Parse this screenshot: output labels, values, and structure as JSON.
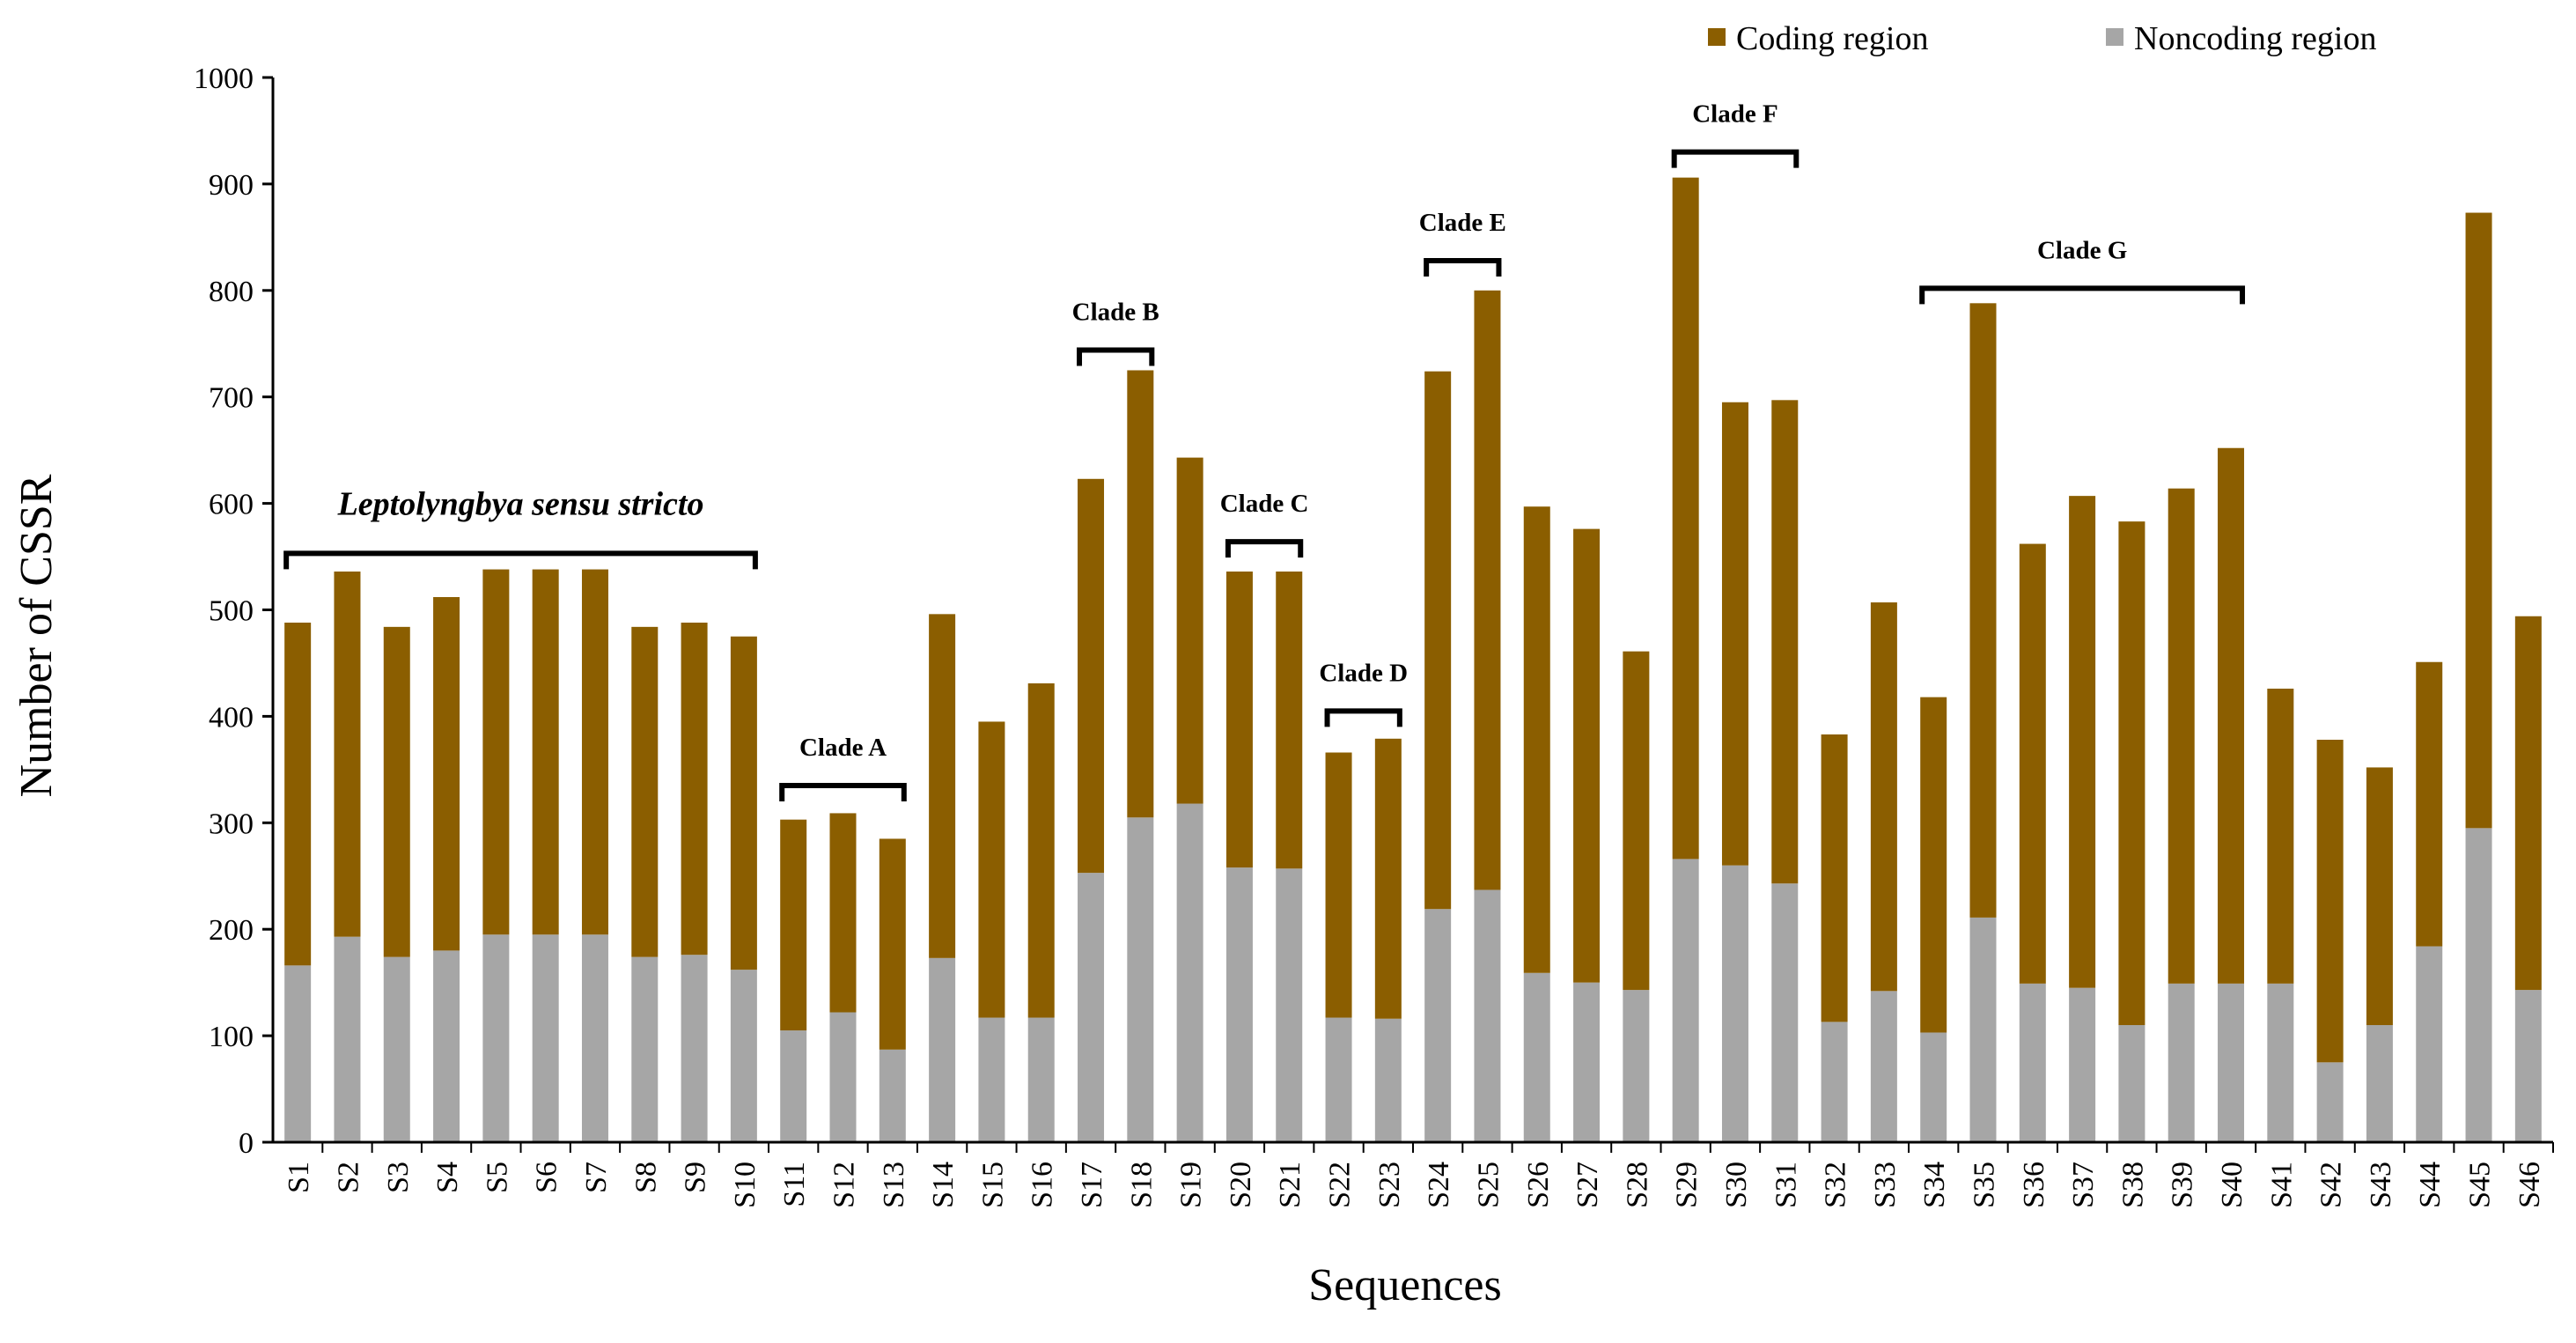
{
  "chart_data": {
    "type": "stacked-bar",
    "xlabel": "Sequences",
    "ylabel": "Number of CSSR",
    "ylim": [
      0,
      1000
    ],
    "yticks": [
      0,
      100,
      200,
      300,
      400,
      500,
      600,
      700,
      800,
      900,
      1000
    ],
    "legend_position": "top-right",
    "categories": [
      "S1",
      "S2",
      "S3",
      "S4",
      "S5",
      "S6",
      "S7",
      "S8",
      "S9",
      "S10",
      "S11",
      "S12",
      "S13",
      "S14",
      "S15",
      "S16",
      "S17",
      "S18",
      "S19",
      "S20",
      "S21",
      "S22",
      "S23",
      "S24",
      "S25",
      "S26",
      "S27",
      "S28",
      "S29",
      "S30",
      "S31",
      "S32",
      "S33",
      "S34",
      "S35",
      "S36",
      "S37",
      "S38",
      "S39",
      "S40",
      "S41",
      "S42",
      "S43",
      "S44",
      "S45",
      "S46"
    ],
    "series": [
      {
        "name": "Noncoding region",
        "color": "#a6a6a6",
        "values": [
          166,
          193,
          174,
          180,
          195,
          195,
          195,
          174,
          176,
          162,
          105,
          122,
          87,
          173,
          117,
          117,
          253,
          305,
          318,
          258,
          257,
          117,
          116,
          219,
          237,
          159,
          150,
          143,
          266,
          260,
          243,
          113,
          142,
          103,
          211,
          149,
          145,
          110,
          149,
          149,
          149,
          75,
          110,
          184,
          295,
          143
        ]
      },
      {
        "name": "Coding region",
        "color": "#8b5e00",
        "values": [
          322,
          343,
          310,
          332,
          343,
          343,
          343,
          310,
          312,
          313,
          198,
          187,
          198,
          323,
          278,
          314,
          370,
          420,
          325,
          278,
          279,
          249,
          263,
          505,
          563,
          438,
          426,
          318,
          640,
          435,
          454,
          270,
          365,
          315,
          577,
          413,
          462,
          473,
          465,
          503,
          277,
          303,
          242,
          267,
          578,
          351
        ]
      }
    ],
    "totals": [
      488,
      536,
      484,
      512,
      538,
      538,
      538,
      484,
      488,
      475,
      303,
      309,
      285,
      496,
      395,
      431,
      623,
      725,
      643,
      536,
      536,
      366,
      379,
      724,
      800,
      597,
      576,
      461,
      906,
      695,
      697,
      383,
      507,
      418,
      788,
      562,
      607,
      583,
      614,
      652,
      426,
      378,
      352,
      451,
      873,
      494
    ],
    "annotations": [
      {
        "label": "Leptolyngbya sensu stricto",
        "from": "S1",
        "to": "S10",
        "level": 553,
        "style": "italic"
      },
      {
        "label": "Clade A",
        "from": "S11",
        "to": "S13",
        "level": 335,
        "style": "bold"
      },
      {
        "label": "Clade B",
        "from": "S17",
        "to": "S18",
        "level": 744,
        "style": "bold"
      },
      {
        "label": "Clade C",
        "from": "S20",
        "to": "S21",
        "level": 564,
        "style": "bold"
      },
      {
        "label": "Clade D",
        "from": "S22",
        "to": "S23",
        "level": 405,
        "style": "bold"
      },
      {
        "label": "Clade E",
        "from": "S24",
        "to": "S25",
        "level": 828,
        "style": "bold"
      },
      {
        "label": "Clade F",
        "from": "S29",
        "to": "S31",
        "level": 930,
        "style": "bold"
      },
      {
        "label": "Clade G",
        "from": "S34",
        "to": "S40",
        "level": 802,
        "style": "bold"
      }
    ]
  }
}
